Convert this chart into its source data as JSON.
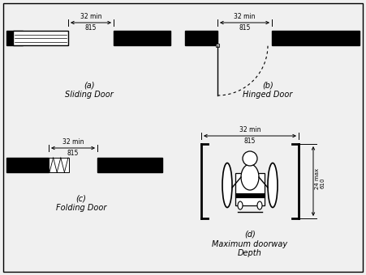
{
  "bg_color": "#f0f0f0",
  "fig_width": 4.51,
  "fig_height": 3.4,
  "title_a": "(a)\nSliding Door",
  "title_b": "(b)\nHinged Door",
  "title_c": "(c)\nFolding Door",
  "title_d": "(d)\nMaximum doorway\nDepth",
  "dim_32min": "32 min",
  "dim_815": "815",
  "dim_24max": "24 max",
  "dim_610": "610"
}
